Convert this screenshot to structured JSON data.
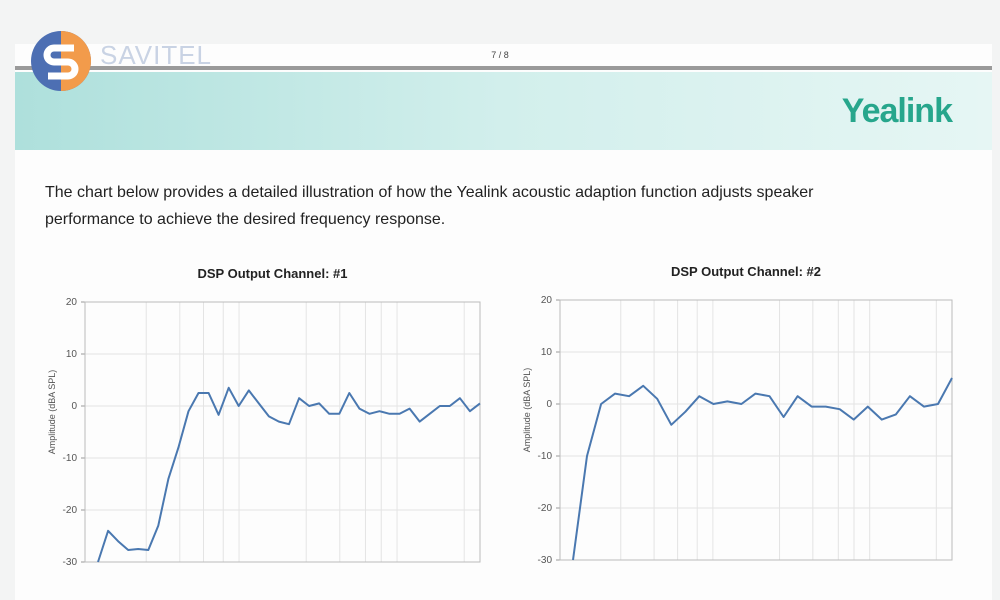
{
  "logo": {
    "text": "SAVITEL"
  },
  "header": {
    "page": "7 / 8",
    "brand": "Yealink"
  },
  "paragraph": [
    "The chart below provides a detailed illustration of how the Yealink acoustic adaption function adjusts speaker",
    "performance to achieve the desired frequency response."
  ],
  "chart_data": [
    {
      "type": "line",
      "title": "DSP Output Channel: #1",
      "y_label": "Amplitude (dBA SPL)",
      "ylim": [
        -30,
        20
      ],
      "yticks": [
        20,
        10,
        0,
        -10,
        -20,
        -30
      ],
      "grid": true,
      "series": [
        {
          "color": "#4a78b0",
          "values": [
            -30,
            -24,
            -26,
            -27.7,
            -27.5,
            -27.7,
            -23,
            -14,
            -8,
            -1,
            2.5,
            2.5,
            -1.7,
            3.5,
            0,
            3,
            0.5,
            -2,
            -3,
            -3.5,
            1.5,
            0,
            0.5,
            -1.5,
            -1.5,
            2.5,
            -0.5,
            -1.5,
            -1,
            -1.5,
            -1.5,
            -0.5,
            -3,
            -1.5,
            0,
            0,
            1.5,
            -1,
            0.5
          ]
        }
      ]
    },
    {
      "type": "line",
      "title": "DSP Output Channel: #2",
      "y_label": "Amplitude (dBA SPL)",
      "ylim": [
        -30,
        20
      ],
      "yticks": [
        20,
        10,
        0,
        -10,
        -20,
        -30
      ],
      "grid": true,
      "series": [
        {
          "color": "#4a78b0",
          "values": [
            -30,
            -10,
            0,
            2,
            1.5,
            3.5,
            1,
            -4,
            -1.5,
            1.5,
            0,
            0.5,
            0,
            2,
            1.5,
            -2.5,
            1.5,
            -0.5,
            -0.5,
            -1,
            -3,
            -0.5,
            -3,
            -2,
            1.5,
            -0.5,
            0,
            5
          ]
        }
      ]
    }
  ]
}
